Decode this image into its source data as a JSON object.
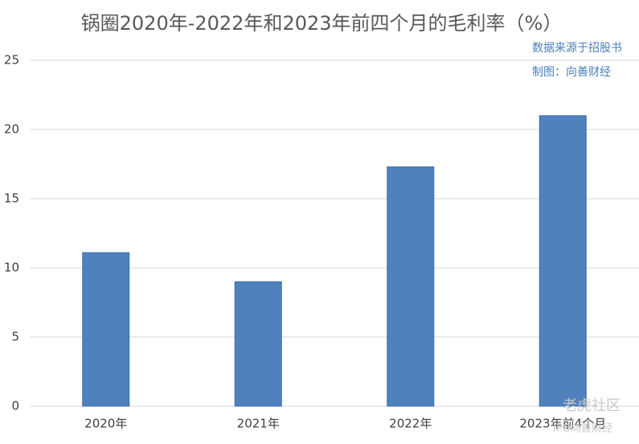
{
  "chart_data": {
    "type": "bar",
    "title": "锅圈2020年-2022年和2023年前四个月的毛利率（%）",
    "annotations": [
      "数据来源于招股书",
      "制图：向善财经"
    ],
    "watermark": [
      "老虎社区",
      "IPO向善财经"
    ],
    "categories": [
      "2020年",
      "2021年",
      "2022年",
      "2023年前4个月"
    ],
    "values": [
      11.1,
      9.0,
      17.3,
      21.0
    ],
    "color": "#4f81bd",
    "ylim": [
      0,
      25
    ],
    "yticks": [
      0,
      5,
      10,
      15,
      20,
      25
    ],
    "grid": true
  }
}
